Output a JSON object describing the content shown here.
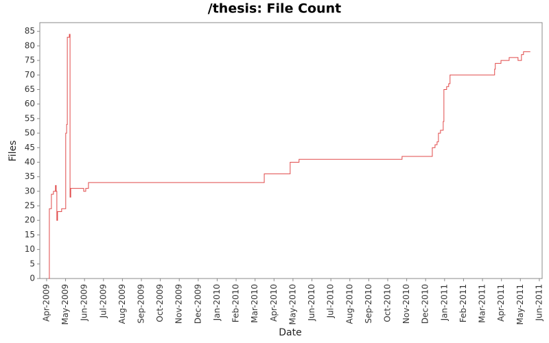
{
  "chart_data": {
    "type": "line",
    "step": "post",
    "title": "/thesis: File Count",
    "x_label": "Date",
    "y_label": "Files",
    "color": "#e04848",
    "x": [
      2009.259,
      2009.262,
      2009.271,
      2009.28,
      2009.289,
      2009.292,
      2009.295,
      2009.298,
      2009.316,
      2009.334,
      2009.338,
      2009.341,
      2009.35,
      2009.353,
      2009.356,
      2009.413,
      2009.422,
      2009.434,
      2010.207,
      2010.321,
      2010.36,
      2010.813,
      2010.946,
      2010.958,
      2010.967,
      2010.973,
      2010.982,
      2010.994,
      2010.997,
      2011.009,
      2011.018,
      2011.024,
      2011.22,
      2011.223,
      2011.248,
      2011.284,
      2011.323,
      2011.338,
      2011.347,
      2011.377
    ],
    "values": [
      0,
      24,
      29,
      30,
      32,
      30,
      20,
      23,
      24,
      50,
      53,
      83,
      84,
      28,
      31,
      30,
      31,
      33,
      36,
      40,
      41,
      42,
      45,
      46,
      47,
      50,
      51,
      54,
      65,
      66,
      67,
      70,
      72,
      74,
      75,
      76,
      75,
      77,
      78,
      78
    ],
    "xlim": [
      2009.22,
      2011.429
    ],
    "ylim": [
      0,
      88
    ],
    "yticks": [
      0,
      5,
      10,
      15,
      20,
      25,
      30,
      35,
      40,
      45,
      50,
      55,
      60,
      65,
      70,
      75,
      80,
      85
    ],
    "xticks": [
      {
        "value": 2009.25,
        "label": "Apr-2009"
      },
      {
        "value": 2009.3333,
        "label": "May-2009"
      },
      {
        "value": 2009.4167,
        "label": "Jun-2009"
      },
      {
        "value": 2009.5,
        "label": "Jul-2009"
      },
      {
        "value": 2009.5833,
        "label": "Aug-2009"
      },
      {
        "value": 2009.6667,
        "label": "Sep-2009"
      },
      {
        "value": 2009.75,
        "label": "Oct-2009"
      },
      {
        "value": 2009.8333,
        "label": "Nov-2009"
      },
      {
        "value": 2009.9167,
        "label": "Dec-2009"
      },
      {
        "value": 2010,
        "label": "Jan-2010"
      },
      {
        "value": 2010.0833,
        "label": "Feb-2010"
      },
      {
        "value": 2010.1667,
        "label": "Mar-2010"
      },
      {
        "value": 2010.25,
        "label": "Apr-2010"
      },
      {
        "value": 2010.3333,
        "label": "May-2010"
      },
      {
        "value": 2010.4167,
        "label": "Jun-2010"
      },
      {
        "value": 2010.5,
        "label": "Jul-2010"
      },
      {
        "value": 2010.5833,
        "label": "Aug-2010"
      },
      {
        "value": 2010.6667,
        "label": "Sep-2010"
      },
      {
        "value": 2010.75,
        "label": "Oct-2010"
      },
      {
        "value": 2010.8333,
        "label": "Nov-2010"
      },
      {
        "value": 2010.9167,
        "label": "Dec-2010"
      },
      {
        "value": 2011,
        "label": "Jan-2011"
      },
      {
        "value": 2011.0833,
        "label": "Feb-2011"
      },
      {
        "value": 2011.1667,
        "label": "Mar-2011"
      },
      {
        "value": 2011.25,
        "label": "Apr-2011"
      },
      {
        "value": 2011.3333,
        "label": "May-2011"
      },
      {
        "value": 2011.4167,
        "label": "Jun-2011"
      }
    ]
  }
}
